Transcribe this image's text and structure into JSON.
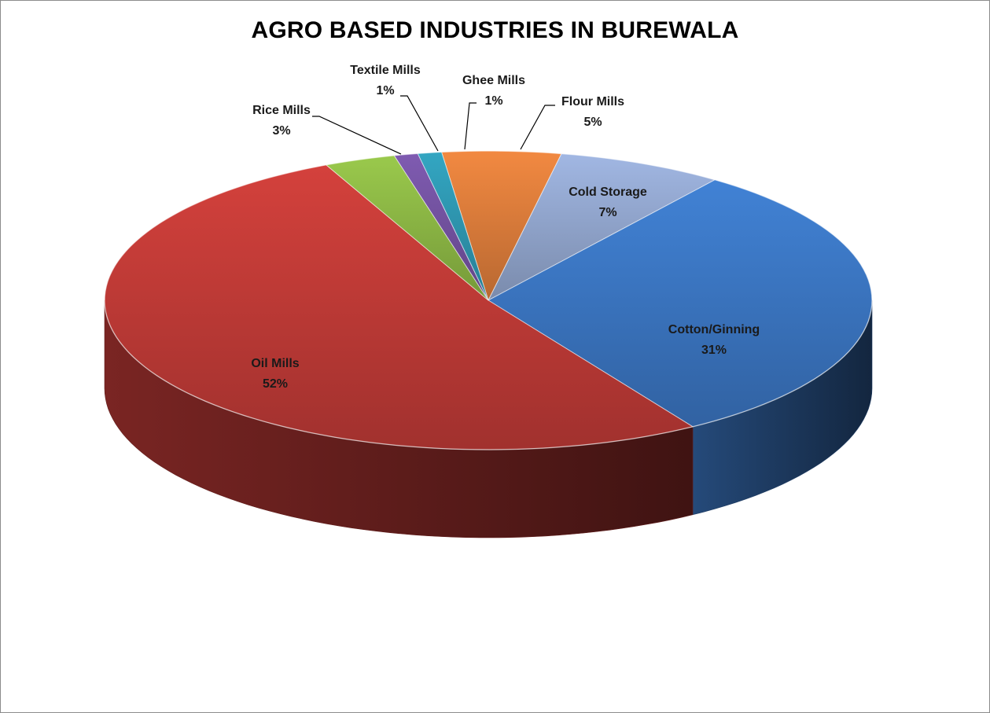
{
  "chart_data": {
    "type": "pie",
    "title": "AGRO BASED INDUSTRIES IN BUREWALA",
    "slices": [
      {
        "name": "Flour Mills",
        "value": 5,
        "label": "5%",
        "color": "#e07f3c"
      },
      {
        "name": "Cold Storage",
        "value": 7,
        "label": "7%",
        "color": "#95a9d2"
      },
      {
        "name": "Cotton/Ginning",
        "value": 31,
        "label": "31%",
        "color": "#3c78c5"
      },
      {
        "name": "Oil Mills",
        "value": 52,
        "label": "52%",
        "color": "#c43c38"
      },
      {
        "name": "Rice Mills",
        "value": 3,
        "label": "3%",
        "color": "#8fba46"
      },
      {
        "name": "Textile Mills",
        "value": 1,
        "label": "1%",
        "color": "#7654a4"
      },
      {
        "name": "Ghee Mills",
        "value": 1,
        "label": "1%",
        "color": "#2f9ab4"
      }
    ],
    "style": "3d-pie",
    "legend": "none"
  }
}
